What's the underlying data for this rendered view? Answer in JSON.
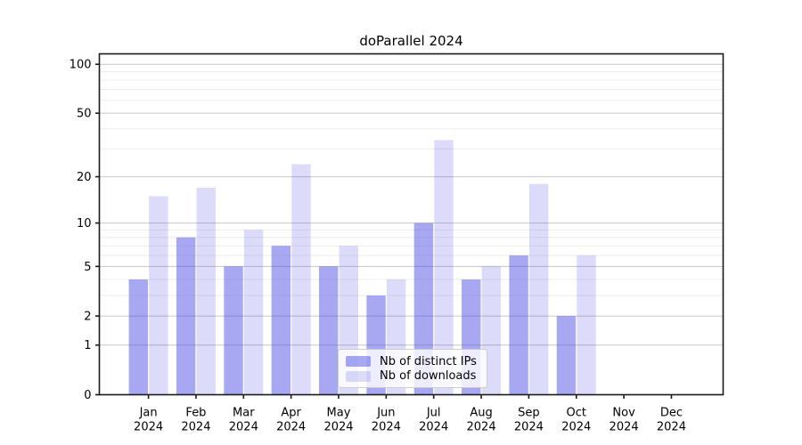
{
  "title": "doParallel 2024",
  "legend": {
    "items": [
      {
        "label": "Nb of distinct IPs"
      },
      {
        "label": "Nb of downloads"
      }
    ]
  },
  "colors": {
    "bar_base": "#5050e6",
    "ips_fill": "rgba(80,80,230,0.5)",
    "downloads_fill": "rgba(80,80,230,0.2)",
    "grid_major": "#c6c6c6",
    "grid_minor": "#ebebeb",
    "axis": "#1a1a1a",
    "text": "#000000"
  },
  "axes": {
    "x_months": [
      "Jan",
      "Feb",
      "Mar",
      "Apr",
      "May",
      "Jun",
      "Jul",
      "Aug",
      "Sep",
      "Oct",
      "Nov",
      "Dec"
    ],
    "x_year": "2024",
    "y_tick_values": [
      0,
      1,
      2,
      5,
      10,
      20,
      50,
      100
    ],
    "y_minor_values": [
      3,
      4,
      6,
      7,
      8,
      9,
      30,
      40,
      60,
      70,
      80,
      90
    ]
  },
  "chart_data": {
    "type": "bar",
    "title": "doParallel 2024",
    "categories": [
      "Jan 2024",
      "Feb 2024",
      "Mar 2024",
      "Apr 2024",
      "May 2024",
      "Jun 2024",
      "Jul 2024",
      "Aug 2024",
      "Sep 2024",
      "Oct 2024",
      "Nov 2024",
      "Dec 2024"
    ],
    "series": [
      {
        "name": "Nb of distinct IPs",
        "values": [
          4,
          8,
          5,
          7,
          5,
          3,
          10,
          4,
          6,
          2,
          0,
          0
        ]
      },
      {
        "name": "Nb of downloads",
        "values": [
          15,
          17,
          9,
          24,
          7,
          4,
          34,
          5,
          18,
          6,
          0,
          0
        ]
      }
    ],
    "xlabel": "",
    "ylabel": "",
    "yscale": "log1p",
    "yticks": [
      0,
      1,
      2,
      5,
      10,
      20,
      50,
      100
    ],
    "minor_yticks": [
      3,
      4,
      6,
      7,
      8,
      9,
      30,
      40,
      60,
      70,
      80,
      90
    ],
    "ylim": [
      0,
      100
    ],
    "grid": true,
    "legend_position": "lower center"
  }
}
